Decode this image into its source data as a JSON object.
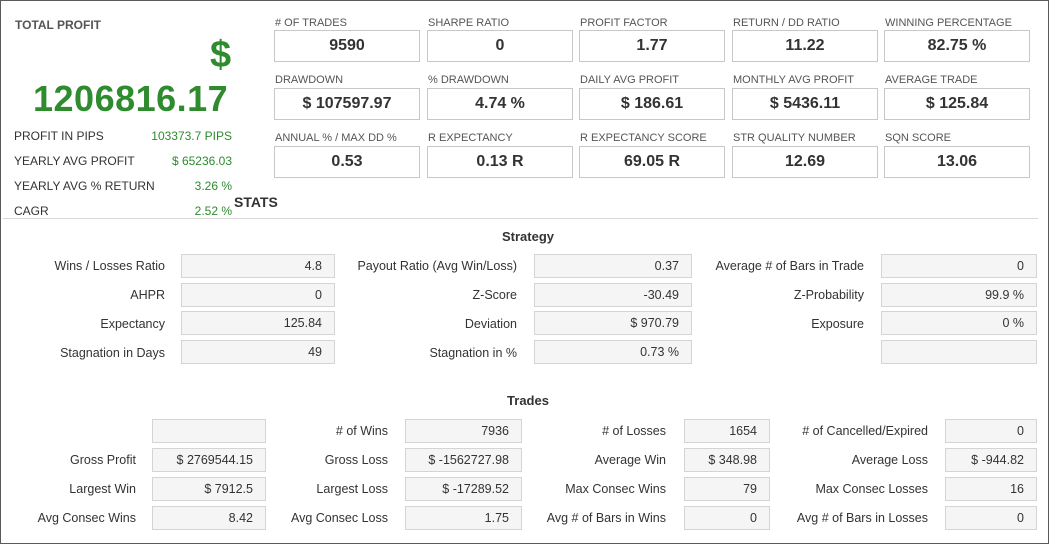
{
  "profit": {
    "title": "TOTAL PROFIT",
    "currency_symbol": "$",
    "value": "1206816.17",
    "rows": [
      {
        "label": "PROFIT IN PIPS",
        "value": "103373.7 PIPS"
      },
      {
        "label": "YEARLY AVG PROFIT",
        "value": "$ 65236.03"
      },
      {
        "label": "YEARLY AVG % RETURN",
        "value": "3.26 %"
      },
      {
        "label": "CAGR",
        "value": "2.52 %"
      }
    ]
  },
  "metrics": [
    {
      "label": "# OF TRADES",
      "value": "9590"
    },
    {
      "label": "SHARPE RATIO",
      "value": "0"
    },
    {
      "label": "PROFIT FACTOR",
      "value": "1.77"
    },
    {
      "label": "RETURN / DD RATIO",
      "value": "11.22"
    },
    {
      "label": "WINNING PERCENTAGE",
      "value": "82.75 %"
    },
    {
      "label": "DRAWDOWN",
      "value": "$ 107597.97"
    },
    {
      "label": "% DRAWDOWN",
      "value": "4.74 %"
    },
    {
      "label": "DAILY AVG PROFIT",
      "value": "$ 186.61"
    },
    {
      "label": "MONTHLY AVG PROFIT",
      "value": "$ 5436.11"
    },
    {
      "label": "AVERAGE TRADE",
      "value": "$ 125.84"
    },
    {
      "label": "ANNUAL % / MAX DD %",
      "value": "0.53"
    },
    {
      "label": "R EXPECTANCY",
      "value": "0.13 R"
    },
    {
      "label": "R EXPECTANCY SCORE",
      "value": "69.05 R"
    },
    {
      "label": "STR QUALITY NUMBER",
      "value": "12.69"
    },
    {
      "label": "SQN SCORE",
      "value": "13.06"
    }
  ],
  "stats_heading": "STATS",
  "strategy": {
    "title": "Strategy",
    "rows": [
      [
        {
          "label": "Wins / Losses Ratio",
          "value": "4.8"
        },
        {
          "label": "Payout Ratio (Avg Win/Loss)",
          "value": "0.37"
        },
        {
          "label": "Average # of Bars in Trade",
          "value": "0"
        }
      ],
      [
        {
          "label": "AHPR",
          "value": "0"
        },
        {
          "label": "Z-Score",
          "value": "-30.49"
        },
        {
          "label": "Z-Probability",
          "value": "99.9 %"
        }
      ],
      [
        {
          "label": "Expectancy",
          "value": "125.84"
        },
        {
          "label": "Deviation",
          "value": "$ 970.79"
        },
        {
          "label": "Exposure",
          "value": "0 %"
        }
      ],
      [
        {
          "label": "Stagnation in Days",
          "value": "49"
        },
        {
          "label": "Stagnation in %",
          "value": "0.73 %"
        },
        {
          "label": "",
          "value": ""
        }
      ]
    ]
  },
  "trades": {
    "title": "Trades",
    "rows": [
      [
        {
          "label": "",
          "value": ""
        },
        {
          "label": "# of Wins",
          "value": "7936"
        },
        {
          "label": "# of Losses",
          "value": "1654"
        },
        {
          "label": "# of Cancelled/Expired",
          "value": "0"
        }
      ],
      [
        {
          "label": "Gross Profit",
          "value": "$ 2769544.15"
        },
        {
          "label": "Gross Loss",
          "value": "$ -1562727.98"
        },
        {
          "label": "Average Win",
          "value": "$ 348.98"
        },
        {
          "label": "Average Loss",
          "value": "$ -944.82"
        }
      ],
      [
        {
          "label": "Largest Win",
          "value": "$ 7912.5"
        },
        {
          "label": "Largest Loss",
          "value": "$ -17289.52"
        },
        {
          "label": "Max Consec Wins",
          "value": "79"
        },
        {
          "label": "Max Consec Losses",
          "value": "16"
        }
      ],
      [
        {
          "label": "Avg Consec Wins",
          "value": "8.42"
        },
        {
          "label": "Avg Consec Loss",
          "value": "1.75"
        },
        {
          "label": "Avg # of Bars in Wins",
          "value": "0"
        },
        {
          "label": "Avg # of Bars in Losses",
          "value": "0"
        }
      ]
    ]
  }
}
